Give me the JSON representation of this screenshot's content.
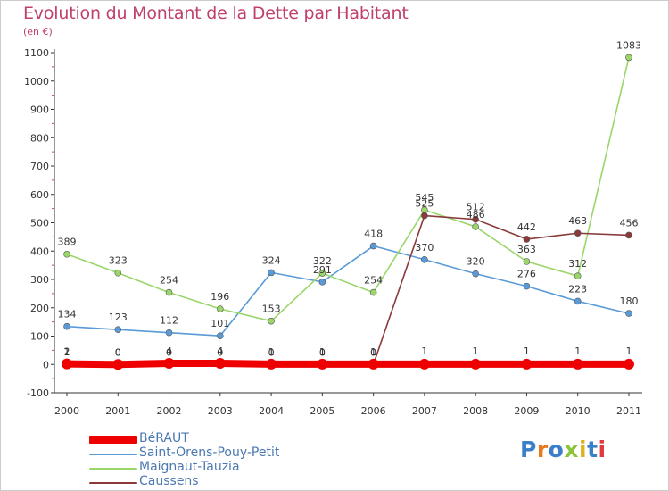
{
  "title": "Evolution du Montant de la Dette par Habitant",
  "unit": "(en €)",
  "brand": {
    "text": "Proxiti",
    "letter_colors": [
      "#3a7fc8",
      "#e87a1e",
      "#3a7fc8",
      "#8ac43a",
      "#e0b020",
      "#3a7fc8",
      "#e03a3a"
    ]
  },
  "chart_data": {
    "type": "line",
    "x": [
      "2000",
      "2001",
      "2002",
      "2003",
      "2004",
      "2005",
      "2006",
      "2007",
      "2008",
      "2009",
      "2010",
      "2011"
    ],
    "ylim": [
      -100,
      1100
    ],
    "yticks": [
      "-100",
      "0",
      "100",
      "200",
      "300",
      "400",
      "500",
      "600",
      "700",
      "800",
      "900",
      "1000",
      "1100"
    ],
    "grid": false,
    "legend_position": "bottom-left",
    "series": [
      {
        "name": "BéRAUT",
        "color": "#ee0000",
        "values": [
          2,
          0,
          4,
          4,
          1,
          1,
          1,
          1,
          1,
          1,
          1,
          1
        ],
        "labels": [
          "2",
          "0",
          "4",
          "4",
          "1",
          "1",
          "1",
          "1",
          "1",
          "1",
          "1",
          "1"
        ]
      },
      {
        "name": "Saint-Orens-Pouy-Petit",
        "color": "#5a9ad6",
        "values": [
          134,
          123,
          112,
          101,
          324,
          291,
          418,
          370,
          320,
          276,
          223,
          180
        ],
        "labels": [
          "134",
          "123",
          "112",
          "101",
          "324",
          "291",
          "418",
          "370",
          "320",
          "276",
          "223",
          "180"
        ]
      },
      {
        "name": "Maignaut-Tauzia",
        "color": "#9ad66a",
        "values": [
          389,
          323,
          254,
          196,
          153,
          322,
          254,
          545,
          486,
          363,
          312,
          1083
        ],
        "labels": [
          "389",
          "323",
          "254",
          "196",
          "153",
          "322",
          "254",
          "545",
          "486",
          "363",
          "312",
          "1083"
        ]
      },
      {
        "name": "Caussens",
        "color": "#8a3a3a",
        "values": [
          1,
          0,
          0,
          0,
          0,
          0,
          0,
          525,
          512,
          442,
          463,
          456
        ],
        "labels": [
          "1",
          "0",
          "0",
          "0",
          "0",
          "0",
          "0",
          "525",
          "512",
          "442",
          "463",
          "456"
        ]
      }
    ]
  }
}
